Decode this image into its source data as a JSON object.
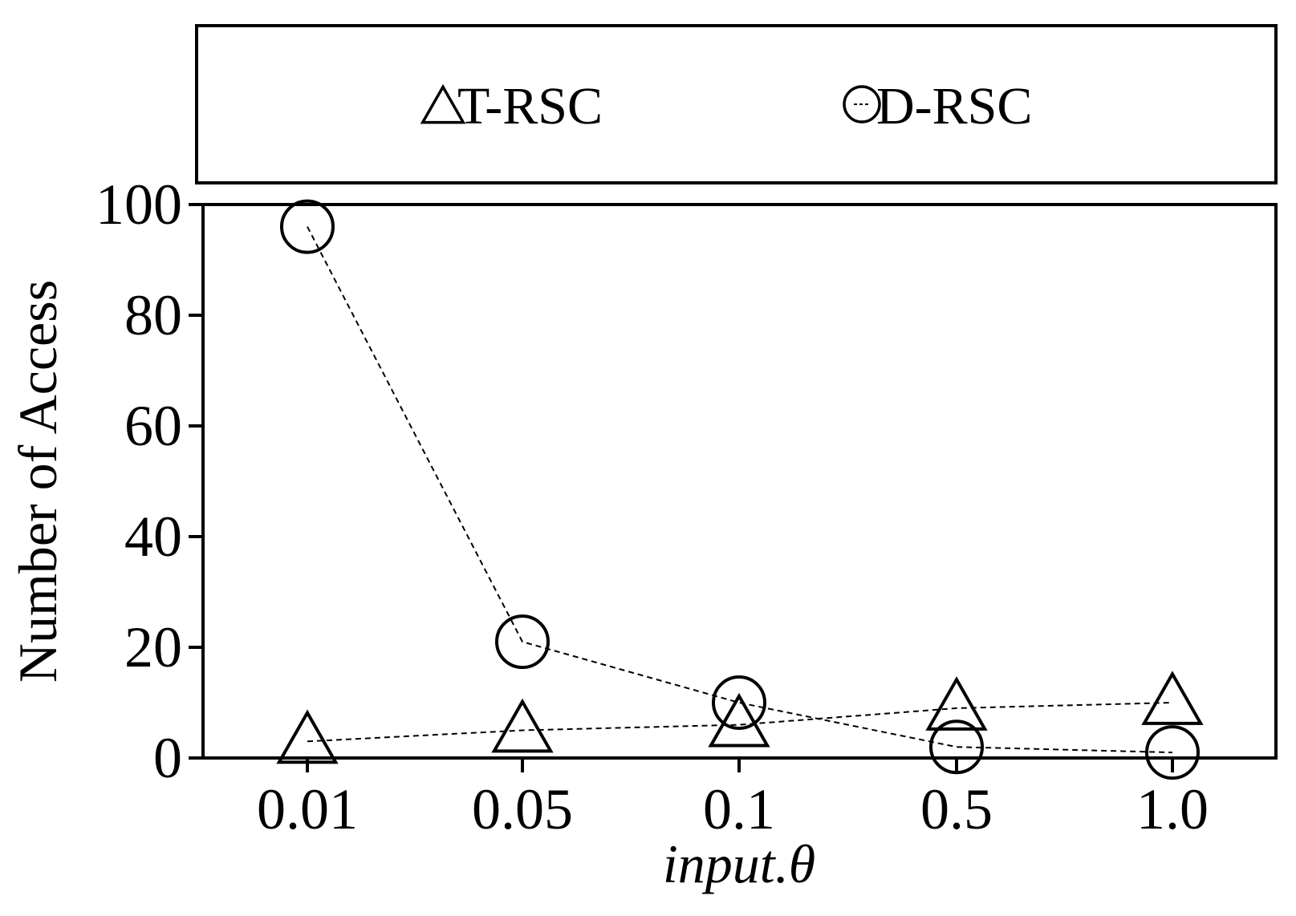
{
  "chart_data": {
    "type": "line",
    "title": "",
    "xlabel": "input.θ",
    "ylabel": "Number of Access",
    "categories": [
      "0.01",
      "0.05",
      "0.1",
      "0.5",
      "1.0"
    ],
    "ylim": [
      0,
      100
    ],
    "yticks": [
      0,
      20,
      40,
      60,
      80,
      100
    ],
    "grid": false,
    "legend_position": "top",
    "line_style": "dashed",
    "colors": {
      "line": "#000000",
      "marker": "#000000",
      "background": "#ffffff"
    },
    "series": [
      {
        "name": "T-RSC",
        "marker": "triangle",
        "values": [
          3,
          5,
          6,
          9,
          10
        ]
      },
      {
        "name": "D-RSC",
        "marker": "circle",
        "values": [
          96,
          21,
          10,
          2,
          1
        ]
      }
    ]
  }
}
